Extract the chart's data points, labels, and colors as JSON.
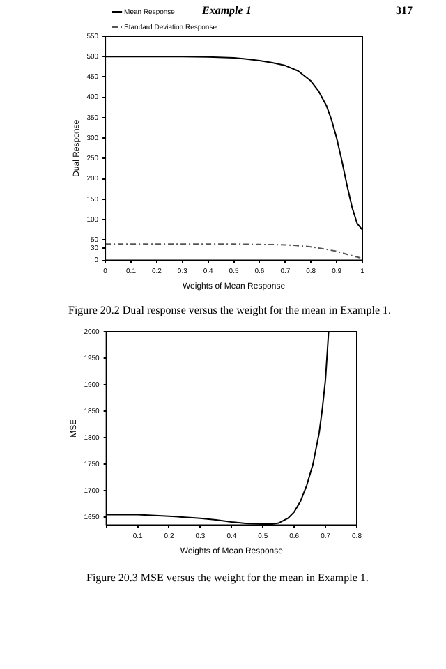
{
  "chart_data": [
    {
      "type": "line",
      "xlabel": "Weights of Mean Response",
      "ylabel": "Dual Response",
      "xlim": [
        0,
        1
      ],
      "xticks": [
        0,
        0.1,
        0.2,
        0.3,
        0.4,
        0.5,
        0.6,
        0.7,
        0.8,
        0.9,
        1
      ],
      "ylim": [
        0,
        550
      ],
      "yticks": [
        0,
        30,
        50,
        100,
        150,
        200,
        250,
        300,
        350,
        400,
        450,
        500,
        550
      ],
      "grid": false,
      "legend": "left",
      "marker": "none",
      "annotations": [
        "Example 1",
        "317",
        "Figure 20.2 Dual response versus the weight for the mean in Example 1."
      ],
      "series": [
        {
          "name": "Mean Response",
          "color": "#000000",
          "line_style": "solid",
          "x": [
            0,
            0.1,
            0.2,
            0.3,
            0.4,
            0.5,
            0.55,
            0.6,
            0.65,
            0.7,
            0.75,
            0.8,
            0.83,
            0.86,
            0.88,
            0.9,
            0.92,
            0.94,
            0.96,
            0.98,
            1
          ],
          "values": [
            500,
            500,
            500,
            500,
            499,
            497,
            494,
            490,
            485,
            478,
            465,
            440,
            415,
            380,
            345,
            300,
            245,
            185,
            130,
            90,
            75
          ]
        },
        {
          "name": "Standard Deviation Response",
          "color": "#555555",
          "line_style": "dashed",
          "x": [
            0,
            0.1,
            0.2,
            0.3,
            0.4,
            0.5,
            0.6,
            0.7,
            0.75,
            0.8,
            0.85,
            0.9,
            0.95,
            1
          ],
          "values": [
            40,
            40,
            40,
            40,
            40,
            40,
            39,
            38,
            36,
            33,
            28,
            22,
            13,
            5
          ]
        }
      ]
    },
    {
      "type": "line",
      "xlabel": "Weights of Mean Response",
      "ylabel": "MSE",
      "xlim": [
        0,
        0.8
      ],
      "xticks": [
        {
          "value": 0,
          "label": null
        },
        0.1,
        0.2,
        0.3,
        0.4,
        0.5,
        0.6,
        0.7,
        0.8
      ],
      "ylim": [
        1635,
        2000
      ],
      "yticks": [
        1650,
        1700,
        1750,
        1800,
        1850,
        1900,
        1950,
        2000
      ],
      "grid": false,
      "legend": false,
      "marker": "none",
      "annotations": [
        "Figure 20.3 MSE versus the weight for the mean in Example 1."
      ],
      "series": [
        {
          "color": "#000000",
          "line_style": "solid",
          "x": [
            0,
            0.1,
            0.2,
            0.3,
            0.35,
            0.4,
            0.45,
            0.5,
            0.53,
            0.55,
            0.58,
            0.6,
            0.62,
            0.64,
            0.66,
            0.68,
            0.69,
            0.7,
            0.71
          ],
          "values": [
            1655,
            1655,
            1652,
            1648,
            1645,
            1641,
            1638,
            1637,
            1637,
            1639,
            1648,
            1660,
            1680,
            1710,
            1750,
            1810,
            1855,
            1910,
            2000
          ]
        }
      ]
    }
  ]
}
